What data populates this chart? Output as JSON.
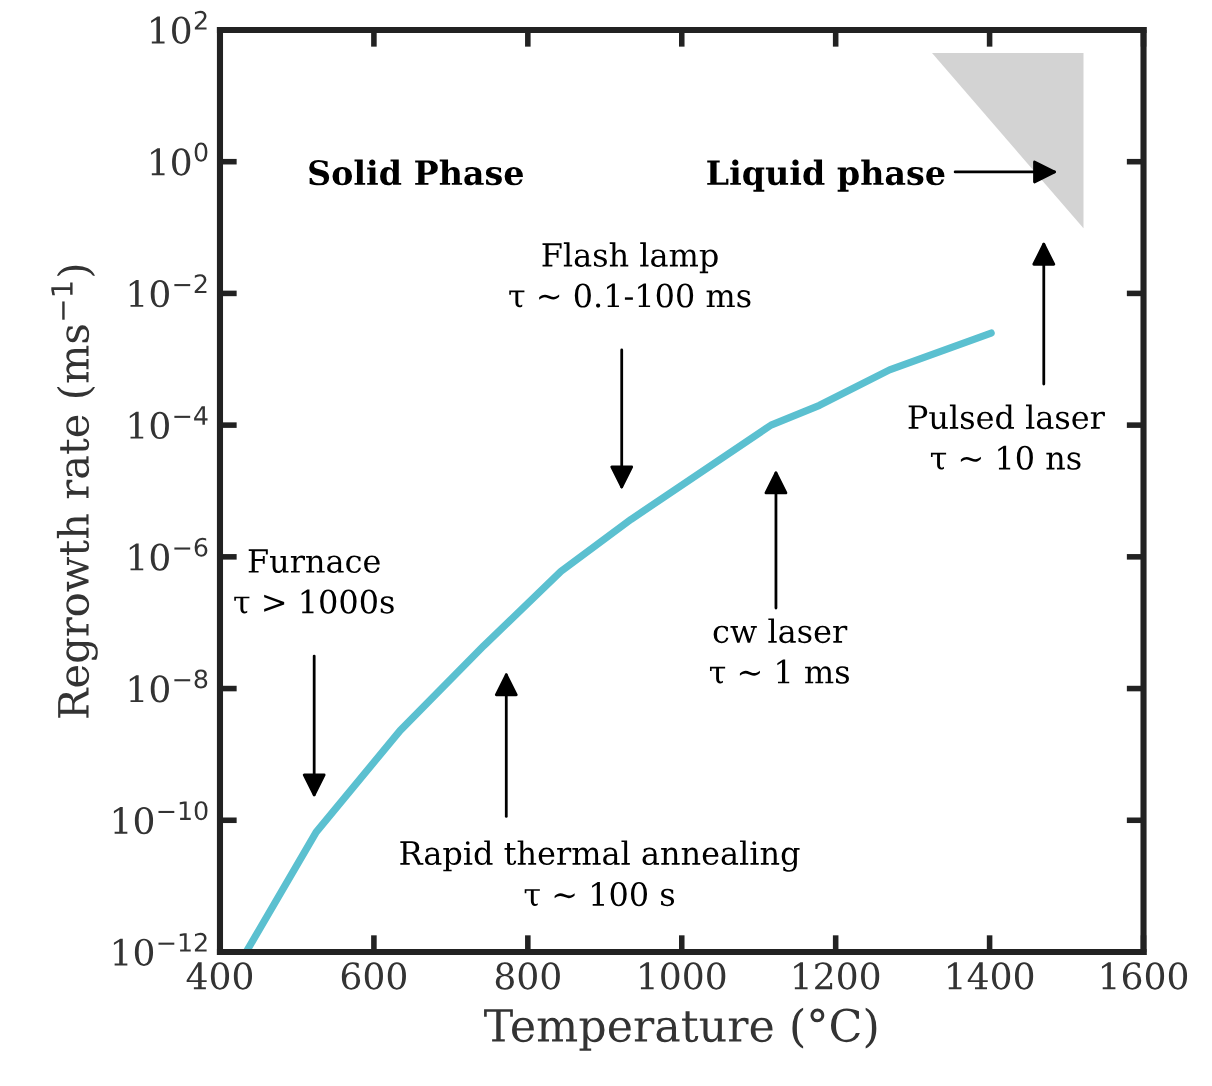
{
  "chart_data": {
    "type": "line",
    "xlabel": "Temperature (°C)",
    "ylabel": "Regrowth rate (ms$^{−1}$)",
    "series": [
      {
        "color": "#5bc0d0",
        "x": [
          434,
          525,
          634,
          743,
          843,
          934,
          1116,
          1179,
          1270,
          1402
        ],
        "values": [
          1e-12,
          6.6e-11,
          2.3e-09,
          4.5e-08,
          6e-07,
          3.7e-06,
          0.0001,
          0.0002,
          0.00069,
          0.0025
        ]
      }
    ],
    "log": "y",
    "grid": false,
    "marker": "none",
    "line_style": "solid",
    "xlim": [
      400,
      1600
    ],
    "xticks": [
      400,
      600,
      800,
      1000,
      1200,
      1400,
      1600
    ],
    "ylim": [
      1e-12,
      100
    ],
    "yticks": [
      {
        "value": 1e-12,
        "label": "10$^{−12}$"
      },
      {
        "value": 1e-10,
        "label": "10$^{−10}$"
      },
      {
        "value": 1e-08,
        "label": "10$^{−8}$"
      },
      {
        "value": 1e-06,
        "label": "10$^{−6}$"
      },
      {
        "value": 0.0001,
        "label": "10$^{−4}$"
      },
      {
        "value": 0.01,
        "label": "10$^{−2}$"
      },
      {
        "value": 1,
        "label": "10$^{0}$"
      },
      {
        "value": 100,
        "label": "10$^{2}$"
      }
    ],
    "annotations": [
      "Solid Phase",
      "Liquid phase",
      "Flash lamp\nτ ~ 0.1-100 ms",
      "Pulsed laser\nτ ~ 10 ns",
      "Furnace\nτ > 1000s",
      "cw laser\nτ ~ 1 ms",
      "Rapid thermal annealing\nτ ~ 100 s"
    ]
  }
}
